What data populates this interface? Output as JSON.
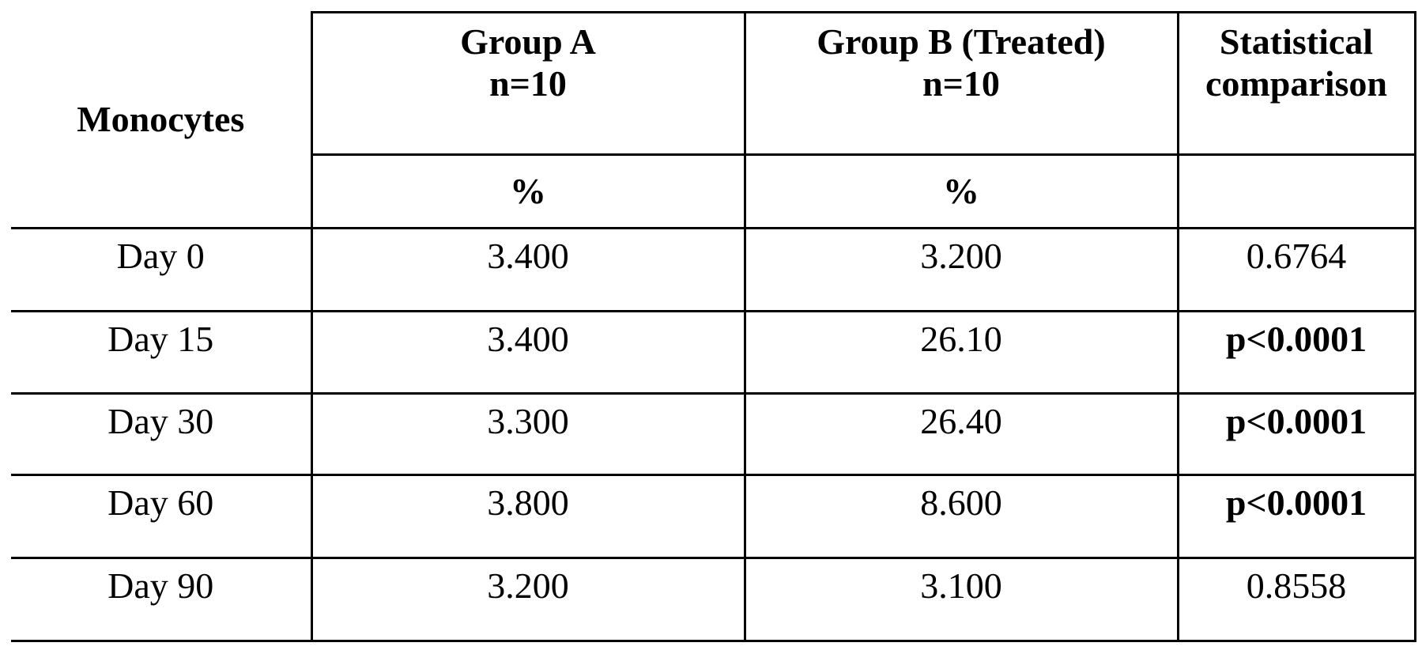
{
  "table": {
    "row_header": "Monocytes",
    "columns": [
      {
        "name": "Group A",
        "n": "n=10",
        "unit": "%"
      },
      {
        "name": "Group B (Treated)",
        "n": "n=10",
        "unit": "%"
      },
      {
        "name_line1": "Statistical",
        "name_line2": "comparison",
        "unit": ""
      }
    ],
    "rows": [
      {
        "label": "Day 0",
        "group_a": "3.400",
        "group_b": "3.200",
        "comparison": "0.6764",
        "significant": false
      },
      {
        "label": "Day 15",
        "group_a": "3.400",
        "group_b": "26.10",
        "comparison": "p<0.0001",
        "significant": true
      },
      {
        "label": "Day 30",
        "group_a": "3.300",
        "group_b": "26.40",
        "comparison": "p<0.0001",
        "significant": true
      },
      {
        "label": "Day 60",
        "group_a": "3.800",
        "group_b": "8.600",
        "comparison": "p<0.0001",
        "significant": true
      },
      {
        "label": "Day 90",
        "group_a": "3.200",
        "group_b": "3.100",
        "comparison": "0.8558",
        "significant": false
      }
    ]
  }
}
